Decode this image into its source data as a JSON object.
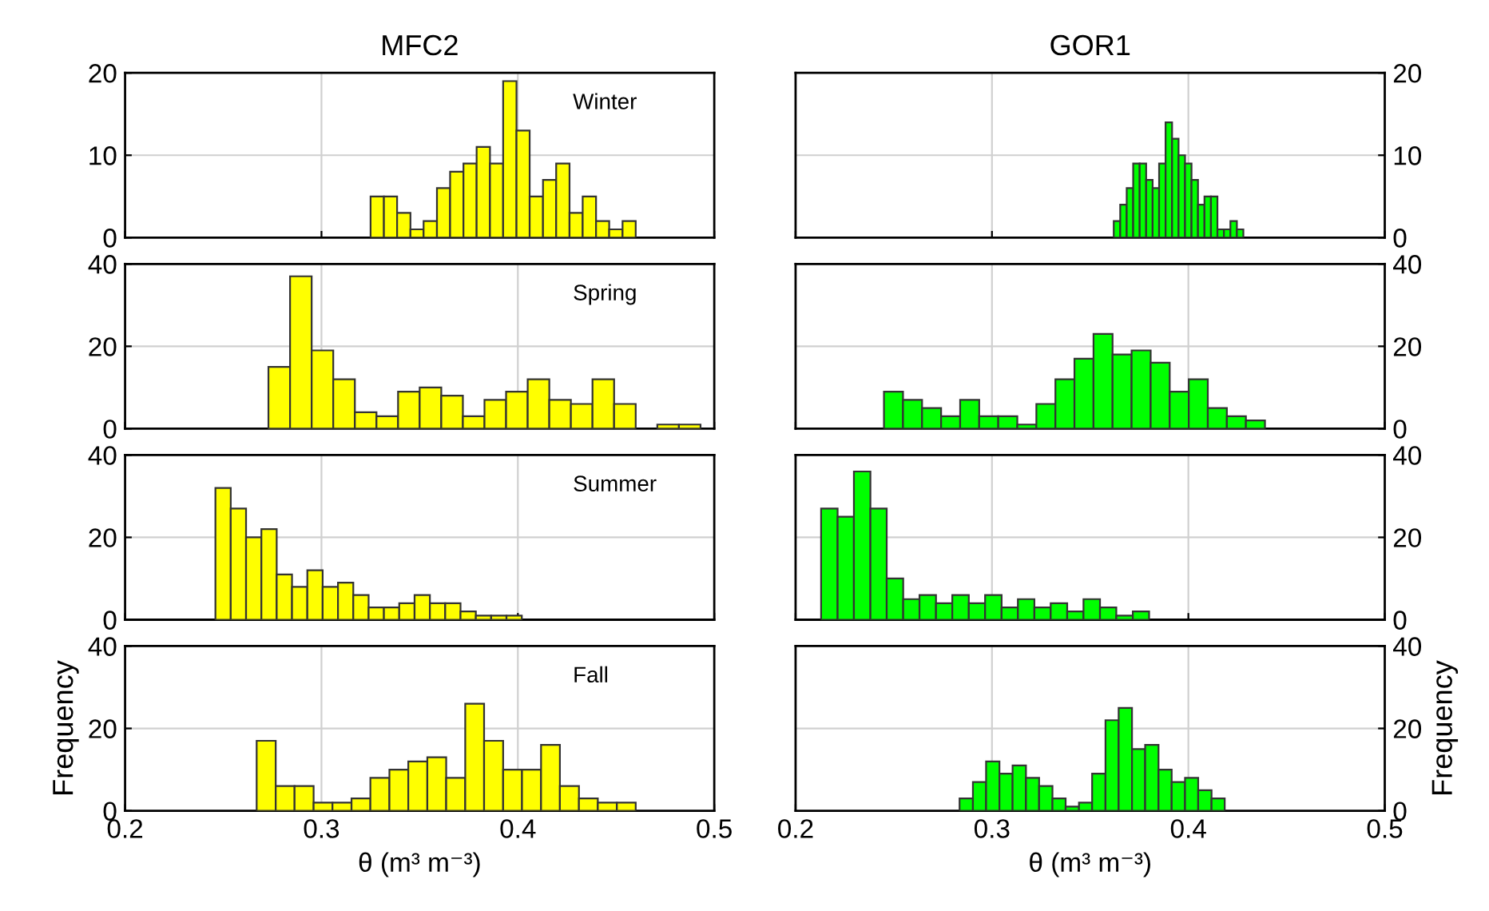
{
  "chart_data": [
    {
      "type": "histogram",
      "title": "MFC2",
      "annotations": [
        "Winter"
      ],
      "color": "#ffff00",
      "bins": [
        0.325,
        0.3318,
        0.3385,
        0.3453,
        0.352,
        0.3588,
        0.3655,
        0.3723,
        0.379,
        0.3858,
        0.3925,
        0.3993,
        0.406,
        0.4128,
        0.4195,
        0.4263,
        0.433,
        0.4398,
        0.4465,
        0.4533,
        0.46
      ],
      "values": [
        5,
        5,
        3,
        1,
        2,
        6,
        8,
        9,
        11,
        9,
        19,
        13,
        5,
        7,
        9,
        3,
        5,
        2,
        1,
        2
      ],
      "xlim": [
        0.2,
        0.5
      ],
      "xticks": [
        0.2,
        0.3,
        0.4,
        0.5
      ],
      "ylim": [
        0,
        20
      ],
      "yticks": [
        0,
        10,
        20
      ],
      "grid": true,
      "tick_labels": "y"
    },
    {
      "type": "histogram",
      "title": "GOR1",
      "color": "#00ff00",
      "bins": [
        0.362,
        0.3653,
        0.3686,
        0.3719,
        0.3752,
        0.3785,
        0.3818,
        0.3851,
        0.3884,
        0.3917,
        0.395,
        0.3983,
        0.4016,
        0.4049,
        0.4082,
        0.4115,
        0.4148,
        0.4181,
        0.4214,
        0.4247,
        0.428
      ],
      "values": [
        2,
        4,
        6,
        9,
        9,
        7,
        6,
        9,
        14,
        12,
        10,
        9,
        7,
        4,
        5,
        5,
        1,
        1,
        2,
        1
      ],
      "xlim": [
        0.2,
        0.5
      ],
      "xticks": [
        0.2,
        0.3,
        0.4,
        0.5
      ],
      "ylim": [
        0,
        20
      ],
      "yticks": [
        0,
        10,
        20
      ],
      "grid": true,
      "tick_labels": "y"
    },
    {
      "type": "histogram",
      "annotations": [
        "Spring"
      ],
      "color": "#ffff00",
      "bins": [
        0.273,
        0.284,
        0.295,
        0.306,
        0.317,
        0.328,
        0.339,
        0.35,
        0.361,
        0.372,
        0.383,
        0.394,
        0.405,
        0.416,
        0.427,
        0.438,
        0.449,
        0.46,
        0.471,
        0.482,
        0.493
      ],
      "values": [
        15,
        37,
        19,
        12,
        4,
        3,
        9,
        10,
        8,
        3,
        7,
        9,
        12,
        7,
        6,
        12,
        6,
        0,
        1,
        1
      ],
      "xlim": [
        0.2,
        0.5
      ],
      "xticks": [
        0.2,
        0.3,
        0.4,
        0.5
      ],
      "ylim": [
        0,
        40
      ],
      "yticks": [
        0,
        20,
        40
      ],
      "grid": true,
      "tick_labels": "y"
    },
    {
      "type": "histogram",
      "color": "#00ff00",
      "bins": [
        0.245,
        0.2547,
        0.2644,
        0.2741,
        0.2838,
        0.2935,
        0.3032,
        0.3129,
        0.3226,
        0.3323,
        0.342,
        0.3517,
        0.3614,
        0.3711,
        0.3808,
        0.3905,
        0.4002,
        0.4099,
        0.4196,
        0.4293,
        0.439
      ],
      "values": [
        9,
        7,
        5,
        3,
        7,
        3,
        3,
        1,
        6,
        12,
        17,
        23,
        18,
        19,
        16,
        9,
        12,
        5,
        3,
        2
      ],
      "xlim": [
        0.2,
        0.5
      ],
      "xticks": [
        0.2,
        0.3,
        0.4,
        0.5
      ],
      "ylim": [
        0,
        40
      ],
      "yticks": [
        0,
        20,
        40
      ],
      "grid": true,
      "tick_labels": "y"
    },
    {
      "type": "histogram",
      "annotations": [
        "Summer"
      ],
      "color": "#ffff00",
      "bins": [
        0.246,
        0.2538,
        0.2616,
        0.2694,
        0.2772,
        0.285,
        0.2928,
        0.3006,
        0.3084,
        0.3162,
        0.324,
        0.3318,
        0.3396,
        0.3474,
        0.3552,
        0.363,
        0.3708,
        0.3786,
        0.3864,
        0.3942,
        0.402
      ],
      "values": [
        32,
        27,
        20,
        22,
        11,
        8,
        12,
        8,
        9,
        6,
        3,
        3,
        4,
        6,
        4,
        4,
        2,
        1,
        1,
        1
      ],
      "xlim": [
        0.2,
        0.5
      ],
      "xticks": [
        0.2,
        0.3,
        0.4,
        0.5
      ],
      "ylim": [
        0,
        40
      ],
      "yticks": [
        0,
        20,
        40
      ],
      "grid": true,
      "tick_labels": "y"
    },
    {
      "type": "histogram",
      "color": "#00ff00",
      "bins": [
        0.213,
        0.2214,
        0.2297,
        0.2381,
        0.2464,
        0.2548,
        0.2631,
        0.2715,
        0.2798,
        0.2882,
        0.2965,
        0.3049,
        0.3132,
        0.3216,
        0.3299,
        0.3383,
        0.3466,
        0.355,
        0.3633,
        0.3717,
        0.38
      ],
      "values": [
        27,
        25,
        36,
        27,
        10,
        5,
        6,
        4,
        6,
        4,
        6,
        3,
        5,
        3,
        4,
        2,
        5,
        3,
        1,
        2
      ],
      "xlim": [
        0.2,
        0.5
      ],
      "xticks": [
        0.2,
        0.3,
        0.4,
        0.5
      ],
      "ylim": [
        0,
        40
      ],
      "yticks": [
        0,
        20,
        40
      ],
      "grid": true,
      "tick_labels": "y"
    },
    {
      "type": "histogram",
      "annotations": [
        "Fall"
      ],
      "xlabel": "θ (m³ m⁻³)",
      "ylabel": "Frequency",
      "color": "#ffff00",
      "bins": [
        0.267,
        0.2767,
        0.2863,
        0.296,
        0.3056,
        0.3153,
        0.3249,
        0.3346,
        0.3442,
        0.3539,
        0.3635,
        0.3732,
        0.3828,
        0.3925,
        0.4021,
        0.4118,
        0.4214,
        0.4311,
        0.4407,
        0.4504,
        0.46
      ],
      "values": [
        17,
        6,
        6,
        2,
        2,
        3,
        8,
        10,
        12,
        13,
        8,
        26,
        17,
        10,
        10,
        16,
        6,
        3,
        2,
        2
      ],
      "xlim": [
        0.2,
        0.5
      ],
      "xticks": [
        0.2,
        0.3,
        0.4,
        0.5
      ],
      "ylim": [
        0,
        40
      ],
      "yticks": [
        0,
        20,
        40
      ],
      "grid": true
    },
    {
      "type": "histogram",
      "xlabel": "θ (m³ m⁻³)",
      "ylabel": "Frequency",
      "color": "#00ff00",
      "bins": [
        0.2835,
        0.2903,
        0.297,
        0.3038,
        0.3105,
        0.3173,
        0.324,
        0.3308,
        0.3375,
        0.3443,
        0.351,
        0.3578,
        0.3645,
        0.3713,
        0.378,
        0.3848,
        0.3915,
        0.3983,
        0.405,
        0.4118,
        0.4185
      ],
      "values": [
        3,
        7,
        12,
        9,
        11,
        8,
        6,
        3,
        1,
        2,
        9,
        22,
        25,
        15,
        16,
        10,
        7,
        8,
        5,
        3
      ],
      "xlim": [
        0.2,
        0.5
      ],
      "xticks": [
        0.2,
        0.3,
        0.4,
        0.5
      ],
      "ylim": [
        0,
        40
      ],
      "yticks": [
        0,
        20,
        40
      ],
      "grid": true
    }
  ]
}
